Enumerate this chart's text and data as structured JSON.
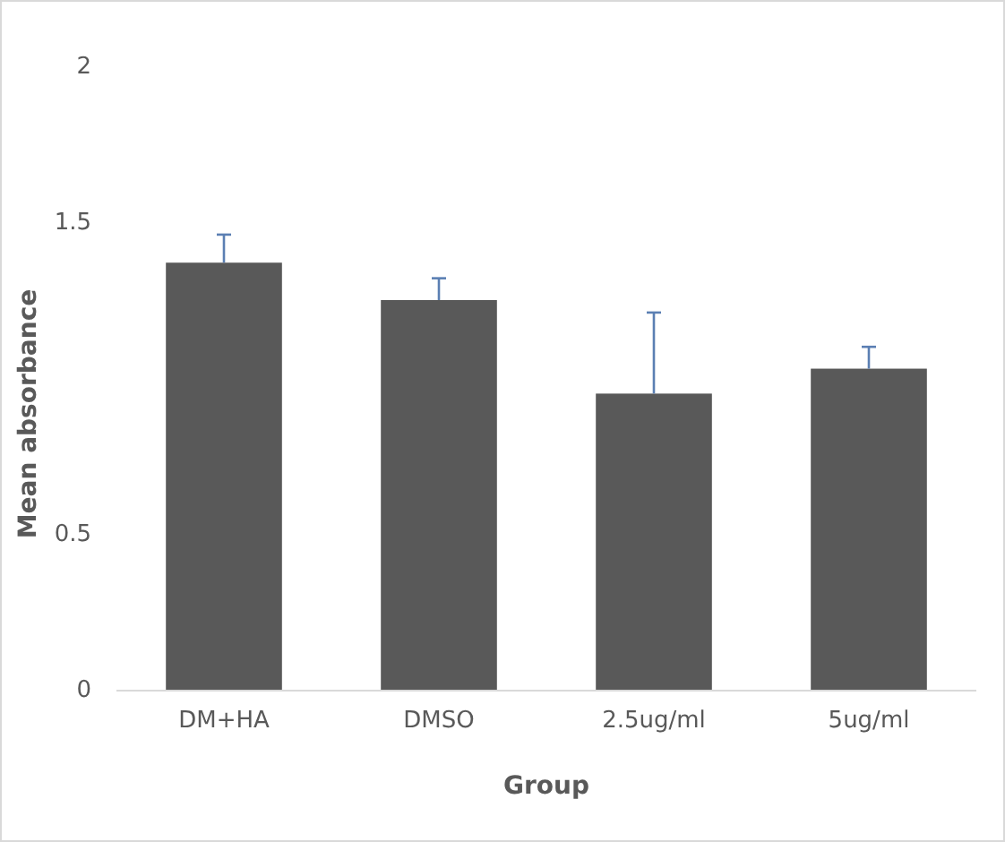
{
  "chart_data": {
    "type": "bar",
    "categories": [
      "DM+HA",
      "DMSO",
      "2.5ug/ml",
      "5ug/ml"
    ],
    "values": [
      1.37,
      1.25,
      0.95,
      1.03
    ],
    "color": "#595959",
    "errors": [
      [
        1.37,
        1.46
      ],
      [
        1.25,
        1.32
      ],
      [
        0.95,
        1.21
      ],
      [
        1.03,
        1.1
      ]
    ],
    "ylim": [
      0,
      2
    ],
    "yticks": [
      0,
      0.5,
      1.5,
      2
    ],
    "xlabel": "Group",
    "ylabel": "Mean absorbance",
    "grid": false
  }
}
